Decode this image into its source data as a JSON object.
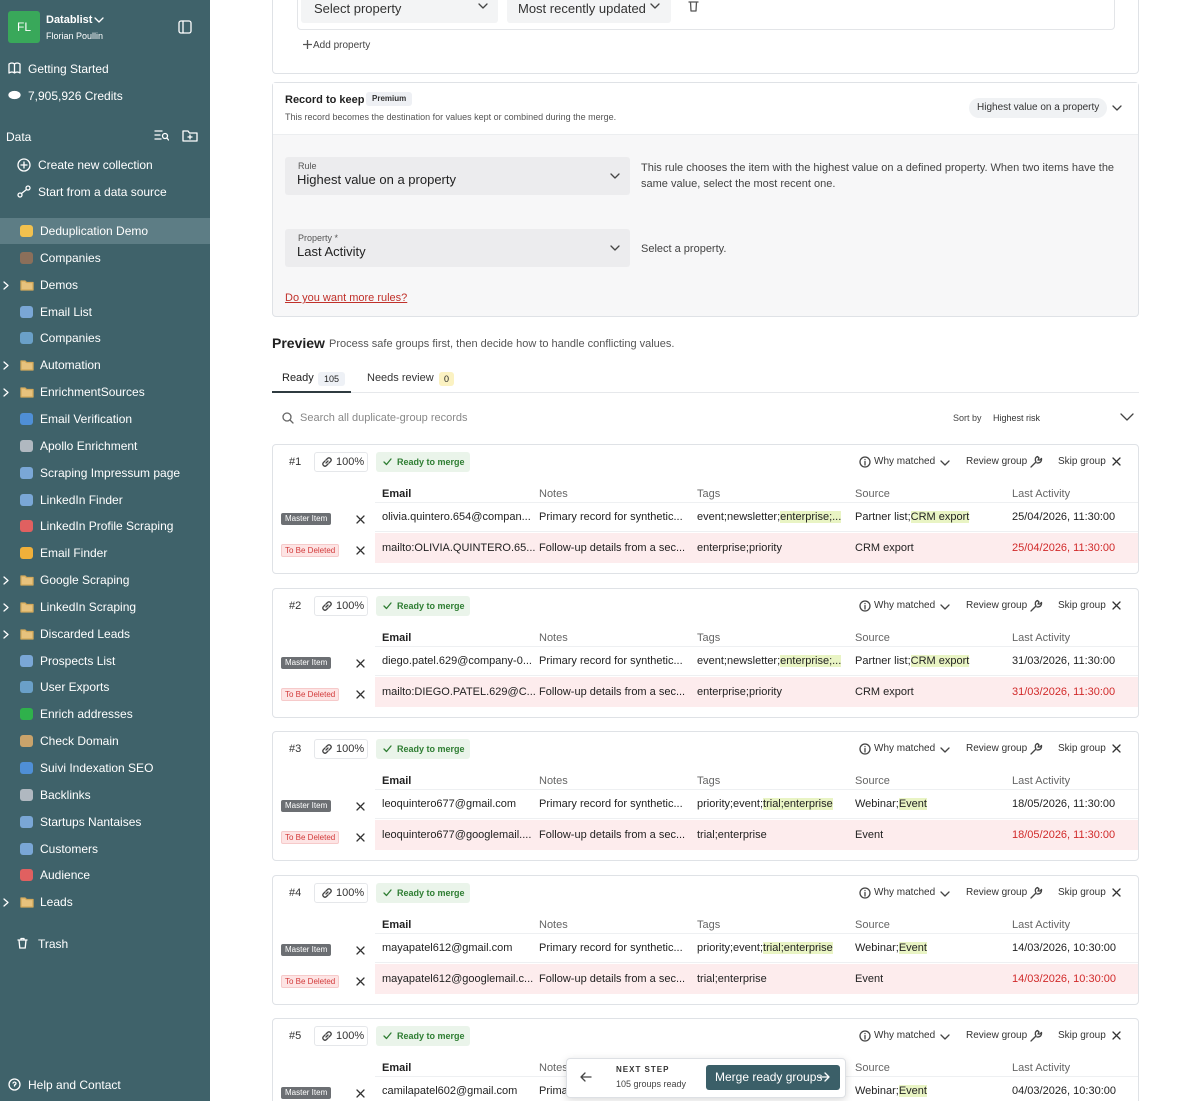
{
  "sidebar": {
    "workspace": {
      "initials": "FL",
      "name": "Datablist",
      "user": "Florian Poullin"
    },
    "links": [
      "Getting Started",
      "7,905,926 Credits"
    ],
    "section": "Data",
    "actions": [
      "Create new collection",
      "Start from a data source"
    ],
    "collections": [
      {
        "label": "Deduplication Demo",
        "active": true
      },
      {
        "label": "Companies"
      },
      {
        "label": "Demos",
        "folder": true
      },
      {
        "label": "Email List"
      },
      {
        "label": "Companies"
      },
      {
        "label": "Automation",
        "folder": true
      },
      {
        "label": "EnrichmentSources",
        "folder": true
      },
      {
        "label": "Email Verification"
      },
      {
        "label": "Apollo Enrichment"
      },
      {
        "label": "Scraping Impressum page"
      },
      {
        "label": "LinkedIn Finder"
      },
      {
        "label": "LinkedIn Profile Scraping"
      },
      {
        "label": "Email Finder"
      },
      {
        "label": "Google Scraping",
        "folder": true
      },
      {
        "label": "LinkedIn Scraping",
        "folder": true
      },
      {
        "label": "Discarded Leads",
        "folder": true
      },
      {
        "label": "Prospects List"
      },
      {
        "label": "User Exports"
      },
      {
        "label": "Enrich addresses"
      },
      {
        "label": "Check Domain"
      },
      {
        "label": "Suivi Indexation SEO"
      },
      {
        "label": "Backlinks"
      },
      {
        "label": "Startups Nantaises"
      },
      {
        "label": "Customers"
      },
      {
        "label": "Audience"
      },
      {
        "label": "Leads",
        "folder": true
      }
    ],
    "trash": "Trash",
    "help": "Help and Contact"
  },
  "property_sort": {
    "property": "Select property",
    "order": "Most recently updated",
    "add": "Add property"
  },
  "record_to_keep": {
    "title": "Record to keep",
    "badge": "Premium",
    "description": "This record becomes the destination for values kept or combined during the merge.",
    "strategy": "Highest value on a property",
    "rule": {
      "label": "Rule",
      "value": "Highest value on a property",
      "help": "This rule chooses the item with the highest value on a defined property. When two items have the same value, select the most recent one."
    },
    "property": {
      "label": "Property *",
      "value": "Last Activity",
      "help": "Select a property."
    },
    "more_rules": "Do you want more rules?"
  },
  "preview": {
    "title": "Preview",
    "subtitle": "Process safe groups first, then decide how to handle conflicting values.",
    "tabs": [
      {
        "label": "Ready",
        "count": 105,
        "active": true
      },
      {
        "label": "Needs review",
        "count": 0
      }
    ],
    "search_placeholder": "Search all duplicate-group records",
    "sort_label": "Sort by",
    "sort_value": "Highest risk",
    "columns": [
      "Email",
      "Notes",
      "Tags",
      "Source",
      "Last Activity"
    ],
    "group_actions": {
      "why": "Why matched",
      "review": "Review group",
      "skip": "Skip group"
    },
    "groups": [
      {
        "id": "#1",
        "score": "100%",
        "status": "Ready to merge",
        "rows": [
          {
            "role": "Master Item",
            "email": "olivia.quintero.654@compan...",
            "notes": "Primary record for synthetic...",
            "tags": "event;newsletter;",
            "tags_added": "enterprise;...",
            "source": "Partner list;",
            "source_added": "CRM export",
            "last_activity": "25/04/2026, 11:30:00"
          },
          {
            "role": "To Be Deleted",
            "email": "mailto:OLIVIA.QUINTERO.65...",
            "notes": "Follow-up details from a sec...",
            "tags": "enterprise;priority",
            "source": "CRM export",
            "last_activity": "25/04/2026, 11:30:00"
          }
        ]
      },
      {
        "id": "#2",
        "score": "100%",
        "status": "Ready to merge",
        "rows": [
          {
            "role": "Master Item",
            "email": "diego.patel.629@company-0...",
            "notes": "Primary record for synthetic...",
            "tags": "event;newsletter;",
            "tags_added": "enterprise;...",
            "source": "Partner list;",
            "source_added": "CRM export",
            "last_activity": "31/03/2026, 11:30:00"
          },
          {
            "role": "To Be Deleted",
            "email": "mailto:DIEGO.PATEL.629@C...",
            "notes": "Follow-up details from a sec...",
            "tags": "enterprise;priority",
            "source": "CRM export",
            "last_activity": "31/03/2026, 11:30:00"
          }
        ]
      },
      {
        "id": "#3",
        "score": "100%",
        "status": "Ready to merge",
        "rows": [
          {
            "role": "Master Item",
            "email": "leoquintero677@gmail.com",
            "notes": "Primary record for synthetic...",
            "tags": "priority;event;",
            "tags_added": "trial;enterprise",
            "source": "Webinar;",
            "source_added": "Event",
            "last_activity": "18/05/2026, 11:30:00"
          },
          {
            "role": "To Be Deleted",
            "email": "leoquintero677@googlemail....",
            "notes": "Follow-up details from a sec...",
            "tags": "trial;enterprise",
            "source": "Event",
            "last_activity": "18/05/2026, 11:30:00"
          }
        ]
      },
      {
        "id": "#4",
        "score": "100%",
        "status": "Ready to merge",
        "rows": [
          {
            "role": "Master Item",
            "email": "mayapatel612@gmail.com",
            "notes": "Primary record for synthetic...",
            "tags": "priority;event;",
            "tags_added": "trial;enterprise",
            "source": "Webinar;",
            "source_added": "Event",
            "last_activity": "14/03/2026, 10:30:00"
          },
          {
            "role": "To Be Deleted",
            "email": "mayapatel612@googlemail.c...",
            "notes": "Follow-up details from a sec...",
            "tags": "trial;enterprise",
            "source": "Event",
            "last_activity": "14/03/2026, 10:30:00"
          }
        ]
      },
      {
        "id": "#5",
        "score": "100%",
        "status": "Ready to merge",
        "rows": [
          {
            "role": "Master Item",
            "email": "camilapatel602@gmail.com",
            "notes": "Primary record for synthetic...",
            "source": "Webinar;",
            "source_added": "Event",
            "last_activity": "04/03/2026, 10:30:00"
          }
        ]
      }
    ]
  },
  "next_step": {
    "label": "NEXT STEP",
    "detail": "105 groups ready",
    "button": "Merge ready groups"
  }
}
